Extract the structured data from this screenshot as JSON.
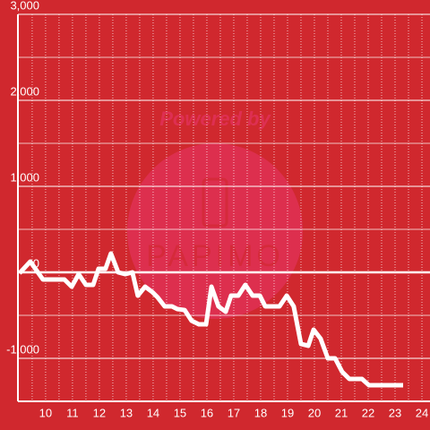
{
  "chart_data": {
    "type": "line",
    "watermark": [
      "Powered by",
      "PAPIMO"
    ],
    "x": [
      9.03,
      9.43,
      9.9,
      10.7,
      10.97,
      11.23,
      11.5,
      11.77,
      11.97,
      12.23,
      12.43,
      12.7,
      12.97,
      13.23,
      13.43,
      13.7,
      13.97,
      14.17,
      14.43,
      14.7,
      14.9,
      15.17,
      15.43,
      15.7,
      15.97,
      16.17,
      16.43,
      16.7,
      16.9,
      17.17,
      17.43,
      17.7,
      17.97,
      18.17,
      18.7,
      18.97,
      19.23,
      19.5,
      19.77,
      19.97,
      20.23,
      20.5,
      20.77,
      21.03,
      21.3,
      21.77,
      22.03,
      23.3
    ],
    "series": [
      {
        "color": "#ffffff",
        "values": [
          -10,
          125,
          -83,
          -83,
          -167,
          -21,
          -146,
          -146,
          42,
          42,
          219,
          0,
          -21,
          0,
          -271,
          -167,
          -229,
          -292,
          -396,
          -396,
          -427,
          -438,
          -563,
          -604,
          -604,
          -167,
          -396,
          -458,
          -271,
          -271,
          -146,
          -271,
          -271,
          -396,
          -396,
          -271,
          -396,
          -833,
          -854,
          -667,
          -771,
          -1000,
          -1000,
          -1156,
          -1240,
          -1240,
          -1313,
          -1313
        ]
      }
    ],
    "xlim": [
      8.97,
      24.3
    ],
    "ylim": [
      -1500,
      3000
    ],
    "xticks": [
      10,
      11,
      12,
      13,
      14,
      15,
      16,
      17,
      18,
      19,
      20,
      21,
      22,
      23,
      24
    ],
    "yticks": [
      {
        "value": -1000,
        "label": "-1,000"
      },
      0,
      {
        "value": 1000,
        "label": "1,000"
      },
      {
        "value": 2000,
        "label": "2,000"
      },
      {
        "value": 3000,
        "label": "3,000"
      }
    ],
    "xminor": [
      9.5,
      10.5,
      11.5,
      12.5,
      13.5,
      14.5,
      15.5,
      16.5,
      17.5,
      18.5,
      19.5,
      20.5,
      21.5,
      22.5,
      23.5
    ],
    "yminor": [
      -500,
      500,
      1500,
      2500
    ],
    "background": "#d0282e",
    "grid": true
  }
}
